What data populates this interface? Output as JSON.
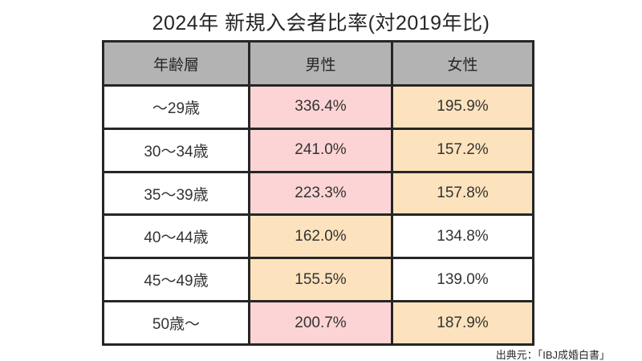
{
  "title": "2024年 新規入会者比率(対2019年比)",
  "source_note": "出典元：「IBJ成婚白書」",
  "colors": {
    "header_bg": "#b3b3b3",
    "highlight_pink": "#fdd4d6",
    "highlight_orange": "#fde3bd",
    "cell_white": "#ffffff",
    "border": "#262626",
    "text": "#333333"
  },
  "table": {
    "headers": [
      "年齢層",
      "男性",
      "女性"
    ],
    "rows": [
      {
        "age": "〜29歳",
        "male": "336.4%",
        "male_color": "pink",
        "female": "195.9%",
        "female_color": "orange"
      },
      {
        "age": "30〜34歳",
        "male": "241.0%",
        "male_color": "pink",
        "female": "157.2%",
        "female_color": "orange"
      },
      {
        "age": "35〜39歳",
        "male": "223.3%",
        "male_color": "pink",
        "female": "157.8%",
        "female_color": "orange"
      },
      {
        "age": "40〜44歳",
        "male": "162.0%",
        "male_color": "orange",
        "female": "134.8%",
        "female_color": "white"
      },
      {
        "age": "45〜49歳",
        "male": "155.5%",
        "male_color": "orange",
        "female": "139.0%",
        "female_color": "white"
      },
      {
        "age": "50歳〜",
        "male": "200.7%",
        "male_color": "pink",
        "female": "187.9%",
        "female_color": "orange"
      }
    ]
  },
  "chart_data": {
    "type": "table",
    "title": "2024年 新規入会者比率(対2019年比)",
    "columns": [
      "年齢層",
      "男性",
      "女性"
    ],
    "categories": [
      "〜29歳",
      "30〜34歳",
      "35〜39歳",
      "40〜44歳",
      "45〜49歳",
      "50歳〜"
    ],
    "series": [
      {
        "name": "男性",
        "unit": "%",
        "values": [
          336.4,
          241.0,
          223.3,
          162.0,
          155.5,
          200.7
        ]
      },
      {
        "name": "女性",
        "unit": "%",
        "values": [
          195.9,
          157.2,
          157.8,
          134.8,
          139.0,
          187.9
        ]
      }
    ],
    "highlights": {
      "male": [
        "pink",
        "pink",
        "pink",
        "orange",
        "orange",
        "pink"
      ],
      "female": [
        "orange",
        "orange",
        "orange",
        "white",
        "white",
        "orange"
      ]
    },
    "source": "出典元：「IBJ成婚白書」"
  }
}
